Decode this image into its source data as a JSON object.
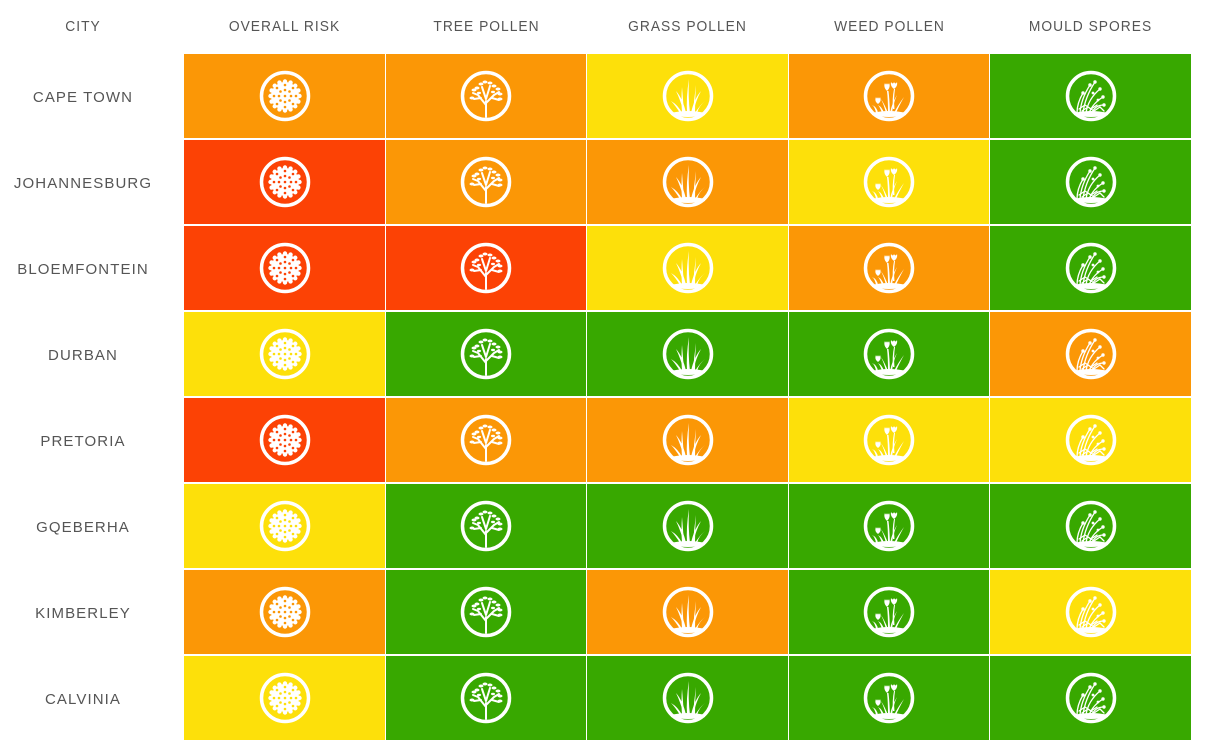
{
  "colors": {
    "high": "#FC4205",
    "moderate": "#FB9706",
    "low": "#FDE00A",
    "very_low": "#38A800"
  },
  "headers": {
    "city": "CITY",
    "columns": [
      "OVERALL RISK",
      "TREE POLLEN",
      "GRASS POLLEN",
      "WEED POLLEN",
      "MOULD SPORES"
    ]
  },
  "icons": [
    "pollen-grain-icon",
    "tree-icon",
    "grass-icon",
    "weed-flower-icon",
    "mould-spores-icon"
  ],
  "rows": [
    {
      "city": "CAPE TOWN",
      "levels": [
        "moderate",
        "moderate",
        "low",
        "moderate",
        "very_low"
      ]
    },
    {
      "city": "JOHANNESBURG",
      "levels": [
        "high",
        "moderate",
        "moderate",
        "low",
        "very_low"
      ]
    },
    {
      "city": "BLOEMFONTEIN",
      "levels": [
        "high",
        "high",
        "low",
        "moderate",
        "very_low"
      ]
    },
    {
      "city": "DURBAN",
      "levels": [
        "low",
        "very_low",
        "very_low",
        "very_low",
        "moderate"
      ]
    },
    {
      "city": "PRETORIA",
      "levels": [
        "high",
        "moderate",
        "moderate",
        "low",
        "low"
      ]
    },
    {
      "city": "GQEBERHA",
      "levels": [
        "low",
        "very_low",
        "very_low",
        "very_low",
        "very_low"
      ]
    },
    {
      "city": "KIMBERLEY",
      "levels": [
        "moderate",
        "very_low",
        "moderate",
        "very_low",
        "low"
      ]
    },
    {
      "city": "CALVINIA",
      "levels": [
        "low",
        "very_low",
        "very_low",
        "very_low",
        "very_low"
      ]
    }
  ]
}
